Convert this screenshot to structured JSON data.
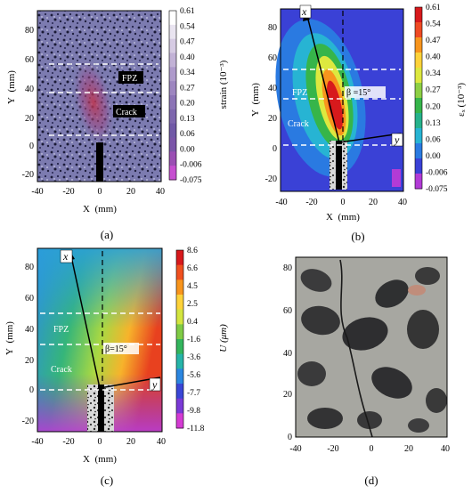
{
  "panels": [
    {
      "id": "a",
      "caption": "(a)",
      "xlabel": "X  (mm)",
      "ylabel": "Y  (mm)",
      "xticks": [
        "-40",
        "-20",
        "0",
        "20",
        "40"
      ],
      "yticks": [
        "80",
        "60",
        "40",
        "20",
        "0",
        "-20"
      ],
      "annotations": {
        "fpz": "FPZ",
        "crack": "Crack"
      },
      "colorbar": {
        "label": "strain  (10⁻³)",
        "values": [
          "0.61",
          "0.54",
          "0.47",
          "0.40",
          "0.34",
          "0.27",
          "0.20",
          "0.13",
          "0.06",
          "0.00",
          "-0.006",
          "-0.075"
        ],
        "colors": [
          "#ffffff",
          "#e9e4f0",
          "#d6cbe3",
          "#c2b2d6",
          "#ae9acb",
          "#9d86c0",
          "#8c74b6",
          "#7d66ad",
          "#7059a6",
          "#7a55a8",
          "#9a4fb3",
          "#c64fd0"
        ]
      }
    },
    {
      "id": "b",
      "caption": "(b)",
      "xlabel": "X  (mm)",
      "ylabel": "Y  (mm)",
      "xticks": [
        "-40",
        "-20",
        "0",
        "20",
        "40"
      ],
      "yticks": [
        "80",
        "60",
        "40",
        "20",
        "0",
        "-20"
      ],
      "annotations": {
        "fpz": "FPZ",
        "crack": "Crack",
        "beta": "β =15°",
        "x_axis": "x",
        "y_axis": "y"
      },
      "colorbar": {
        "label": "εₓ (10⁻³)",
        "values": [
          "0.61",
          "0.54",
          "0.47",
          "0.40",
          "0.34",
          "0.27",
          "0.20",
          "0.13",
          "0.06",
          "0.00",
          "-0.006",
          "-0.075"
        ],
        "colors": [
          "#d7191c",
          "#ef4a23",
          "#f8951d",
          "#fdd23a",
          "#dde83f",
          "#8dcf44",
          "#36b54a",
          "#26b28b",
          "#27b4d3",
          "#2a7ae1",
          "#3a41d6",
          "#b23bd6"
        ]
      }
    },
    {
      "id": "c",
      "caption": "(c)",
      "xlabel": "X  (mm)",
      "ylabel": "Y  (mm)",
      "xticks": [
        "-40",
        "-20",
        "0",
        "20",
        "40"
      ],
      "yticks": [
        "80",
        "60",
        "40",
        "20",
        "0",
        "-20"
      ],
      "annotations": {
        "fpz": "FPZ",
        "crack": "Crack",
        "beta": "β=15°",
        "x_axis": "x",
        "y_axis": "y"
      },
      "colorbar": {
        "label": "U (μm)",
        "values": [
          "8.6",
          "6.6",
          "4.5",
          "2.5",
          "0.4",
          "-1.6",
          "-3.6",
          "-5.6",
          "-7.7",
          "-9.8",
          "-11.8"
        ],
        "colors": [
          "#d7191c",
          "#f0501f",
          "#f8951d",
          "#fdd23a",
          "#d3e53f",
          "#7fcb45",
          "#33b55d",
          "#26b4a8",
          "#2b86e0",
          "#3a46d6",
          "#7a3ad6",
          "#d43bd3"
        ]
      }
    },
    {
      "id": "d",
      "caption": "(d)",
      "xticks": [
        "-40",
        "-20",
        "0",
        "20",
        "40"
      ],
      "yticks": [
        "80",
        "60",
        "40",
        "20",
        "0"
      ]
    }
  ]
}
